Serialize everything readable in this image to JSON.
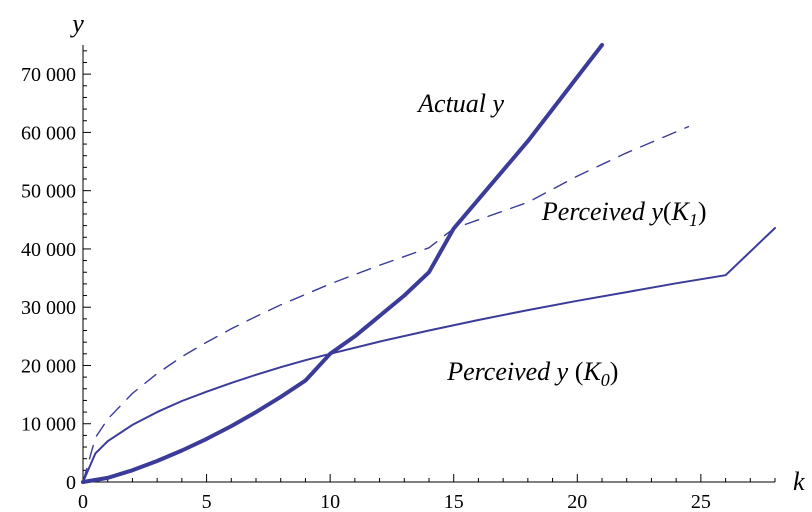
{
  "chart_data": {
    "type": "line",
    "xlabel": "k",
    "ylabel": "y",
    "xlim": [
      0,
      28
    ],
    "ylim": [
      0,
      75000
    ],
    "x_ticks": [
      0,
      5,
      10,
      15,
      20,
      25
    ],
    "x_tick_labels": [
      "0",
      "5",
      "10",
      "15",
      "20",
      "25"
    ],
    "y_ticks": [
      0,
      10000,
      20000,
      30000,
      40000,
      50000,
      60000,
      70000
    ],
    "y_tick_labels": [
      "0",
      "10 000",
      "20 000",
      "30 000",
      "40 000",
      "50 000",
      "60 000",
      "70 000"
    ],
    "grid": false,
    "legend": "none",
    "color": "#3b3b9a",
    "series": [
      {
        "style": "solid-thick",
        "x": [
          0,
          1,
          2,
          3,
          4,
          5,
          6,
          7,
          8,
          9,
          10,
          11,
          12,
          13,
          14,
          15,
          16,
          17,
          18,
          19,
          20,
          21
        ],
        "y": [
          0,
          700,
          2000,
          3600,
          5400,
          7400,
          9600,
          12000,
          14600,
          17400,
          22000,
          25000,
          28500,
          32000,
          36000,
          43500,
          48500,
          53500,
          58500,
          64000,
          69500,
          75000
        ]
      },
      {
        "style": "solid-thin",
        "x": [
          0,
          0.5,
          1,
          2,
          3,
          4,
          5,
          6,
          7,
          8,
          9,
          10,
          12,
          14,
          16,
          18,
          20,
          22,
          24,
          26,
          28
        ],
        "y": [
          0,
          4900,
          7000,
          9800,
          12000,
          13900,
          15500,
          17000,
          18400,
          19700,
          20900,
          22000,
          24100,
          26000,
          27800,
          29500,
          31100,
          32600,
          34100,
          35500,
          43600
        ]
      },
      {
        "style": "dashed-thin",
        "x": [
          0,
          0.5,
          1,
          2,
          3,
          4,
          5,
          6,
          7,
          8,
          9,
          10,
          12,
          14,
          15,
          16,
          18,
          20,
          22,
          24.5
        ],
        "y": [
          0,
          7600,
          10800,
          15200,
          18600,
          21500,
          24000,
          26300,
          28400,
          30400,
          32200,
          34000,
          37200,
          40200,
          43500,
          45000,
          48000,
          52500,
          56500,
          61000
        ]
      }
    ],
    "annotations": [
      {
        "id": "actual",
        "text": "Actual y",
        "x": 15.3,
        "y": 63500
      },
      {
        "id": "k1",
        "text": "Perceived y(K1)",
        "x": 21.9,
        "y": 45000
      },
      {
        "id": "k0",
        "text": "Perceived y (K0)",
        "x": 18.2,
        "y": 17500
      }
    ]
  }
}
